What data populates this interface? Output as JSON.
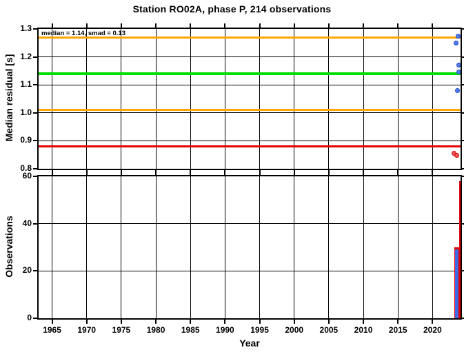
{
  "title": "Station RO02A, phase P, 214 observations",
  "chart_data": [
    {
      "type": "scatter",
      "name": "median-residual-vs-year",
      "title": "Station RO02A, phase P, 214 observations",
      "annotation": "median = 1.14, smad = 0.13",
      "ylabel": "Median residual [s]",
      "ylim": [
        0.8,
        1.3
      ],
      "yticks": [
        {
          "v": 0.8,
          "label": "0.8"
        },
        {
          "v": 0.9,
          "label": "0.9"
        },
        {
          "v": 1.0,
          "label": "1.0"
        },
        {
          "v": 1.1,
          "label": "1.1"
        },
        {
          "v": 1.2,
          "label": "1.2"
        },
        {
          "v": 1.3,
          "label": "1.3"
        }
      ],
      "xlim": [
        1963.05,
        2024.05
      ],
      "xticks": [
        {
          "v": 1965,
          "label": "1965"
        },
        {
          "v": 1970,
          "label": "1970"
        },
        {
          "v": 1975,
          "label": "1975"
        },
        {
          "v": 1980,
          "label": "1980"
        },
        {
          "v": 1985,
          "label": "1985"
        },
        {
          "v": 1990,
          "label": "1990"
        },
        {
          "v": 1995,
          "label": "1995"
        },
        {
          "v": 2000,
          "label": "2000"
        },
        {
          "v": 2005,
          "label": "2005"
        },
        {
          "v": 2010,
          "label": "2010"
        },
        {
          "v": 2015,
          "label": "2015"
        },
        {
          "v": 2020,
          "label": "2020"
        }
      ],
      "hlines": [
        {
          "v": 1.27,
          "color": "#ffa500",
          "lw": 3,
          "name": "upper-smad-line"
        },
        {
          "v": 1.14,
          "color": "#00dd00",
          "lw": 4,
          "name": "median-line"
        },
        {
          "v": 1.01,
          "color": "#ffa500",
          "lw": 3,
          "name": "lower-smad-line"
        },
        {
          "v": 0.88,
          "color": "#e80000",
          "lw": 3,
          "name": "outlier-threshold-line"
        }
      ],
      "points": [
        {
          "x": 2023.7,
          "y": 1.275,
          "fill": "#4f7fe8",
          "edge": "#2547c8",
          "name": "residual-point-blue"
        },
        {
          "x": 2023.45,
          "y": 1.25,
          "fill": "#4f7fe8",
          "edge": "#2547c8",
          "name": "residual-point-blue"
        },
        {
          "x": 2023.8,
          "y": 1.17,
          "fill": "#4f7fe8",
          "edge": "#2547c8",
          "name": "residual-point-blue"
        },
        {
          "x": 2023.8,
          "y": 1.145,
          "fill": "#4f7fe8",
          "edge": "#2547c8",
          "name": "residual-point-blue"
        },
        {
          "x": 2023.6,
          "y": 1.08,
          "fill": "#4f7fe8",
          "edge": "#2547c8",
          "name": "residual-point-blue"
        },
        {
          "x": 2023.1,
          "y": 0.855,
          "fill": "#f25555",
          "edge": "#d40000",
          "name": "residual-point-red"
        },
        {
          "x": 2023.5,
          "y": 0.848,
          "fill": "#f25555",
          "edge": "#d40000",
          "name": "residual-point-red"
        }
      ]
    },
    {
      "type": "bar",
      "name": "observations-per-year",
      "ylabel": "Observations",
      "xlabel": "Year",
      "ylim": [
        0,
        60
      ],
      "yticks": [
        {
          "v": 0,
          "label": "0"
        },
        {
          "v": 20,
          "label": "20"
        },
        {
          "v": 40,
          "label": "40"
        },
        {
          "v": 60,
          "label": "60"
        }
      ],
      "xlim": [
        1963.05,
        2024.05
      ],
      "xticks": [
        {
          "v": 1965,
          "label": "1965"
        },
        {
          "v": 1970,
          "label": "1970"
        },
        {
          "v": 1975,
          "label": "1975"
        },
        {
          "v": 1980,
          "label": "1980"
        },
        {
          "v": 1985,
          "label": "1985"
        },
        {
          "v": 1990,
          "label": "1990"
        },
        {
          "v": 1995,
          "label": "1995"
        },
        {
          "v": 2000,
          "label": "2000"
        },
        {
          "v": 2005,
          "label": "2005"
        },
        {
          "v": 2010,
          "label": "2010"
        },
        {
          "v": 2015,
          "label": "2015"
        },
        {
          "v": 2020,
          "label": "2020"
        }
      ],
      "bars": [
        {
          "x0": 2023.15,
          "x1": 2023.85,
          "h": 30,
          "color": "#e80000",
          "name": "obs-bar-red"
        },
        {
          "x0": 2023.85,
          "x1": 2024.02,
          "h": 58,
          "color": "#e80000",
          "name": "obs-bar-red"
        },
        {
          "x0": 2023.28,
          "x1": 2023.78,
          "h": 29,
          "color": "#4169e1",
          "name": "obs-bar-blue"
        }
      ]
    }
  ]
}
